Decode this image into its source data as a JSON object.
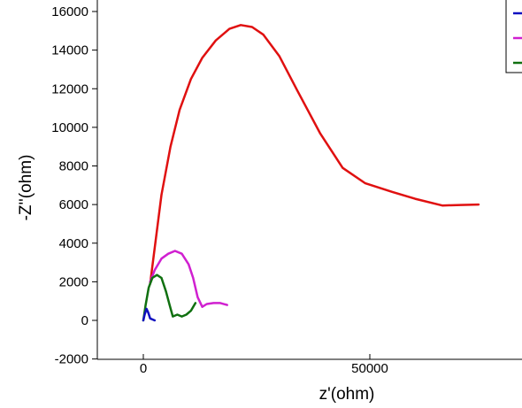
{
  "chart_data": {
    "type": "line",
    "xlabel": "z'(ohm)",
    "ylabel": "-Z''(ohm)",
    "xlim": [
      -8000,
      75000
    ],
    "ylim": [
      -2000,
      16500
    ],
    "xticks": [
      0,
      50000
    ],
    "yticks": [
      -2000,
      0,
      2000,
      4000,
      6000,
      8000,
      10000,
      12000,
      14000,
      16000
    ],
    "legend_position": "top-right",
    "grid": false,
    "series": [
      {
        "color": "#e01010",
        "x": [
          1500,
          4000,
          6000,
          8000,
          10500,
          13000,
          16000,
          19000,
          21500,
          24000,
          26500,
          30000,
          34000,
          39000,
          44000,
          49000,
          55000,
          60000,
          66000,
          70000,
          74000
        ],
        "y": [
          1900,
          6500,
          9000,
          10900,
          12500,
          13600,
          14500,
          15100,
          15300,
          15200,
          14800,
          13700,
          11900,
          9700,
          7900,
          7100,
          6650,
          6300,
          5950,
          5980,
          6000
        ]
      },
      {
        "color": "#d020d0",
        "x": [
          1500,
          2500,
          4000,
          5500,
          7000,
          8500,
          10000,
          11000,
          12000,
          13000,
          14000,
          15500,
          17000,
          18500
        ],
        "y": [
          2000,
          2600,
          3200,
          3450,
          3600,
          3450,
          2900,
          2200,
          1200,
          700,
          850,
          900,
          900,
          800
        ]
      },
      {
        "color": "#107010",
        "x": [
          0,
          500,
          1200,
          2000,
          3000,
          4000,
          5000,
          5800,
          6500,
          7500,
          8500,
          9500,
          10500,
          11500
        ],
        "y": [
          0,
          800,
          1700,
          2200,
          2350,
          2200,
          1500,
          800,
          200,
          300,
          200,
          300,
          500,
          900
        ]
      },
      {
        "color": "#1010c0",
        "x": [
          0,
          300,
          700,
          1100,
          1500,
          2000,
          2500
        ],
        "y": [
          0,
          300,
          600,
          400,
          100,
          50,
          0
        ]
      }
    ]
  }
}
